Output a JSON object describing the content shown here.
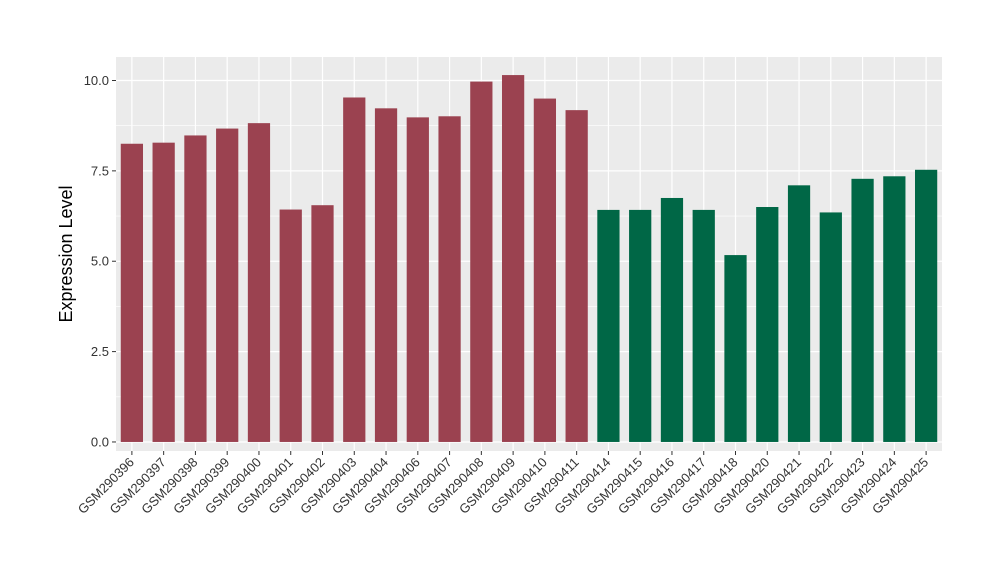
{
  "chart_data": {
    "type": "bar",
    "title": "",
    "xlabel": "",
    "ylabel": "Expression Level",
    "ylim": [
      -0.25,
      10.65
    ],
    "yticks": [
      0.0,
      2.5,
      5.0,
      7.5,
      10.0
    ],
    "ytick_labels": [
      "0.0",
      "2.5",
      "5.0",
      "7.5",
      "10.0"
    ],
    "grid": true,
    "legend": "none",
    "colors": {
      "group1": "#9b4250",
      "group2": "#006746",
      "panel": "#ebebeb",
      "grid": "#ffffff"
    },
    "categories": [
      "GSM290396",
      "GSM290397",
      "GSM290398",
      "GSM290399",
      "GSM290400",
      "GSM290401",
      "GSM290402",
      "GSM290403",
      "GSM290404",
      "GSM290406",
      "GSM290407",
      "GSM290408",
      "GSM290409",
      "GSM290410",
      "GSM290411",
      "GSM290414",
      "GSM290415",
      "GSM290416",
      "GSM290417",
      "GSM290418",
      "GSM290420",
      "GSM290421",
      "GSM290422",
      "GSM290423",
      "GSM290424",
      "GSM290425"
    ],
    "values": [
      8.25,
      8.28,
      8.48,
      8.67,
      8.82,
      6.43,
      6.55,
      9.53,
      9.23,
      8.98,
      9.01,
      9.97,
      10.15,
      9.5,
      9.18,
      6.42,
      6.42,
      6.75,
      6.42,
      5.17,
      6.5,
      7.1,
      6.35,
      7.28,
      7.35,
      7.53
    ],
    "groups": [
      1,
      1,
      1,
      1,
      1,
      1,
      1,
      1,
      1,
      1,
      1,
      1,
      1,
      1,
      1,
      2,
      2,
      2,
      2,
      2,
      2,
      2,
      2,
      2,
      2,
      2
    ]
  }
}
